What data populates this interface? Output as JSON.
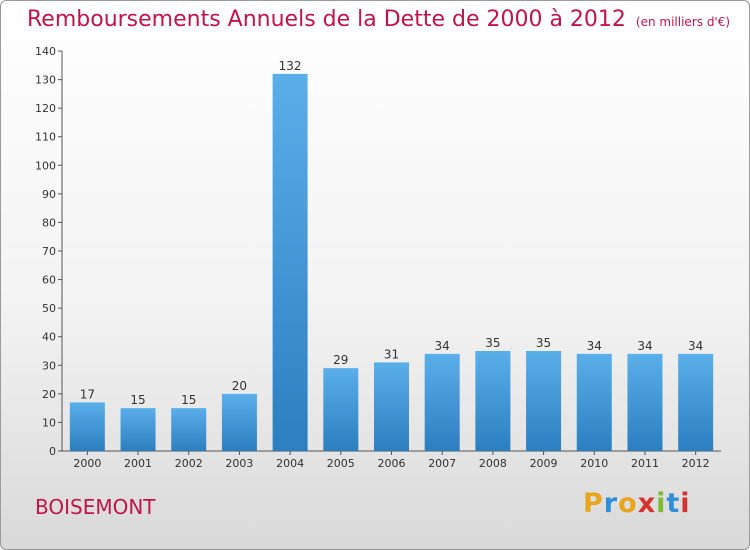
{
  "header": {
    "title": "Remboursements Annuels de la Dette de 2000 à 2012",
    "subtitle": "(en milliers d'€)"
  },
  "footer": {
    "town": "BOISEMONT",
    "logo": "Proxiti"
  },
  "colors": {
    "accent": "#c0144b",
    "bar_light": "#5aaeea",
    "bar_dark": "#2b7fc0"
  },
  "chart_data": {
    "type": "bar",
    "categories": [
      "2000",
      "2001",
      "2002",
      "2003",
      "2004",
      "2005",
      "2006",
      "2007",
      "2008",
      "2009",
      "2010",
      "2011",
      "2012"
    ],
    "values": [
      17,
      15,
      15,
      20,
      132,
      29,
      31,
      34,
      35,
      35,
      34,
      34,
      34
    ],
    "title": "Remboursements Annuels de la Dette de 2000 à 2012",
    "xlabel": "",
    "ylabel": "",
    "ylim": [
      0,
      140
    ],
    "yticks": [
      0,
      10,
      20,
      30,
      40,
      50,
      60,
      70,
      80,
      90,
      100,
      110,
      120,
      130,
      140
    ],
    "grid": false,
    "legend": "none"
  }
}
